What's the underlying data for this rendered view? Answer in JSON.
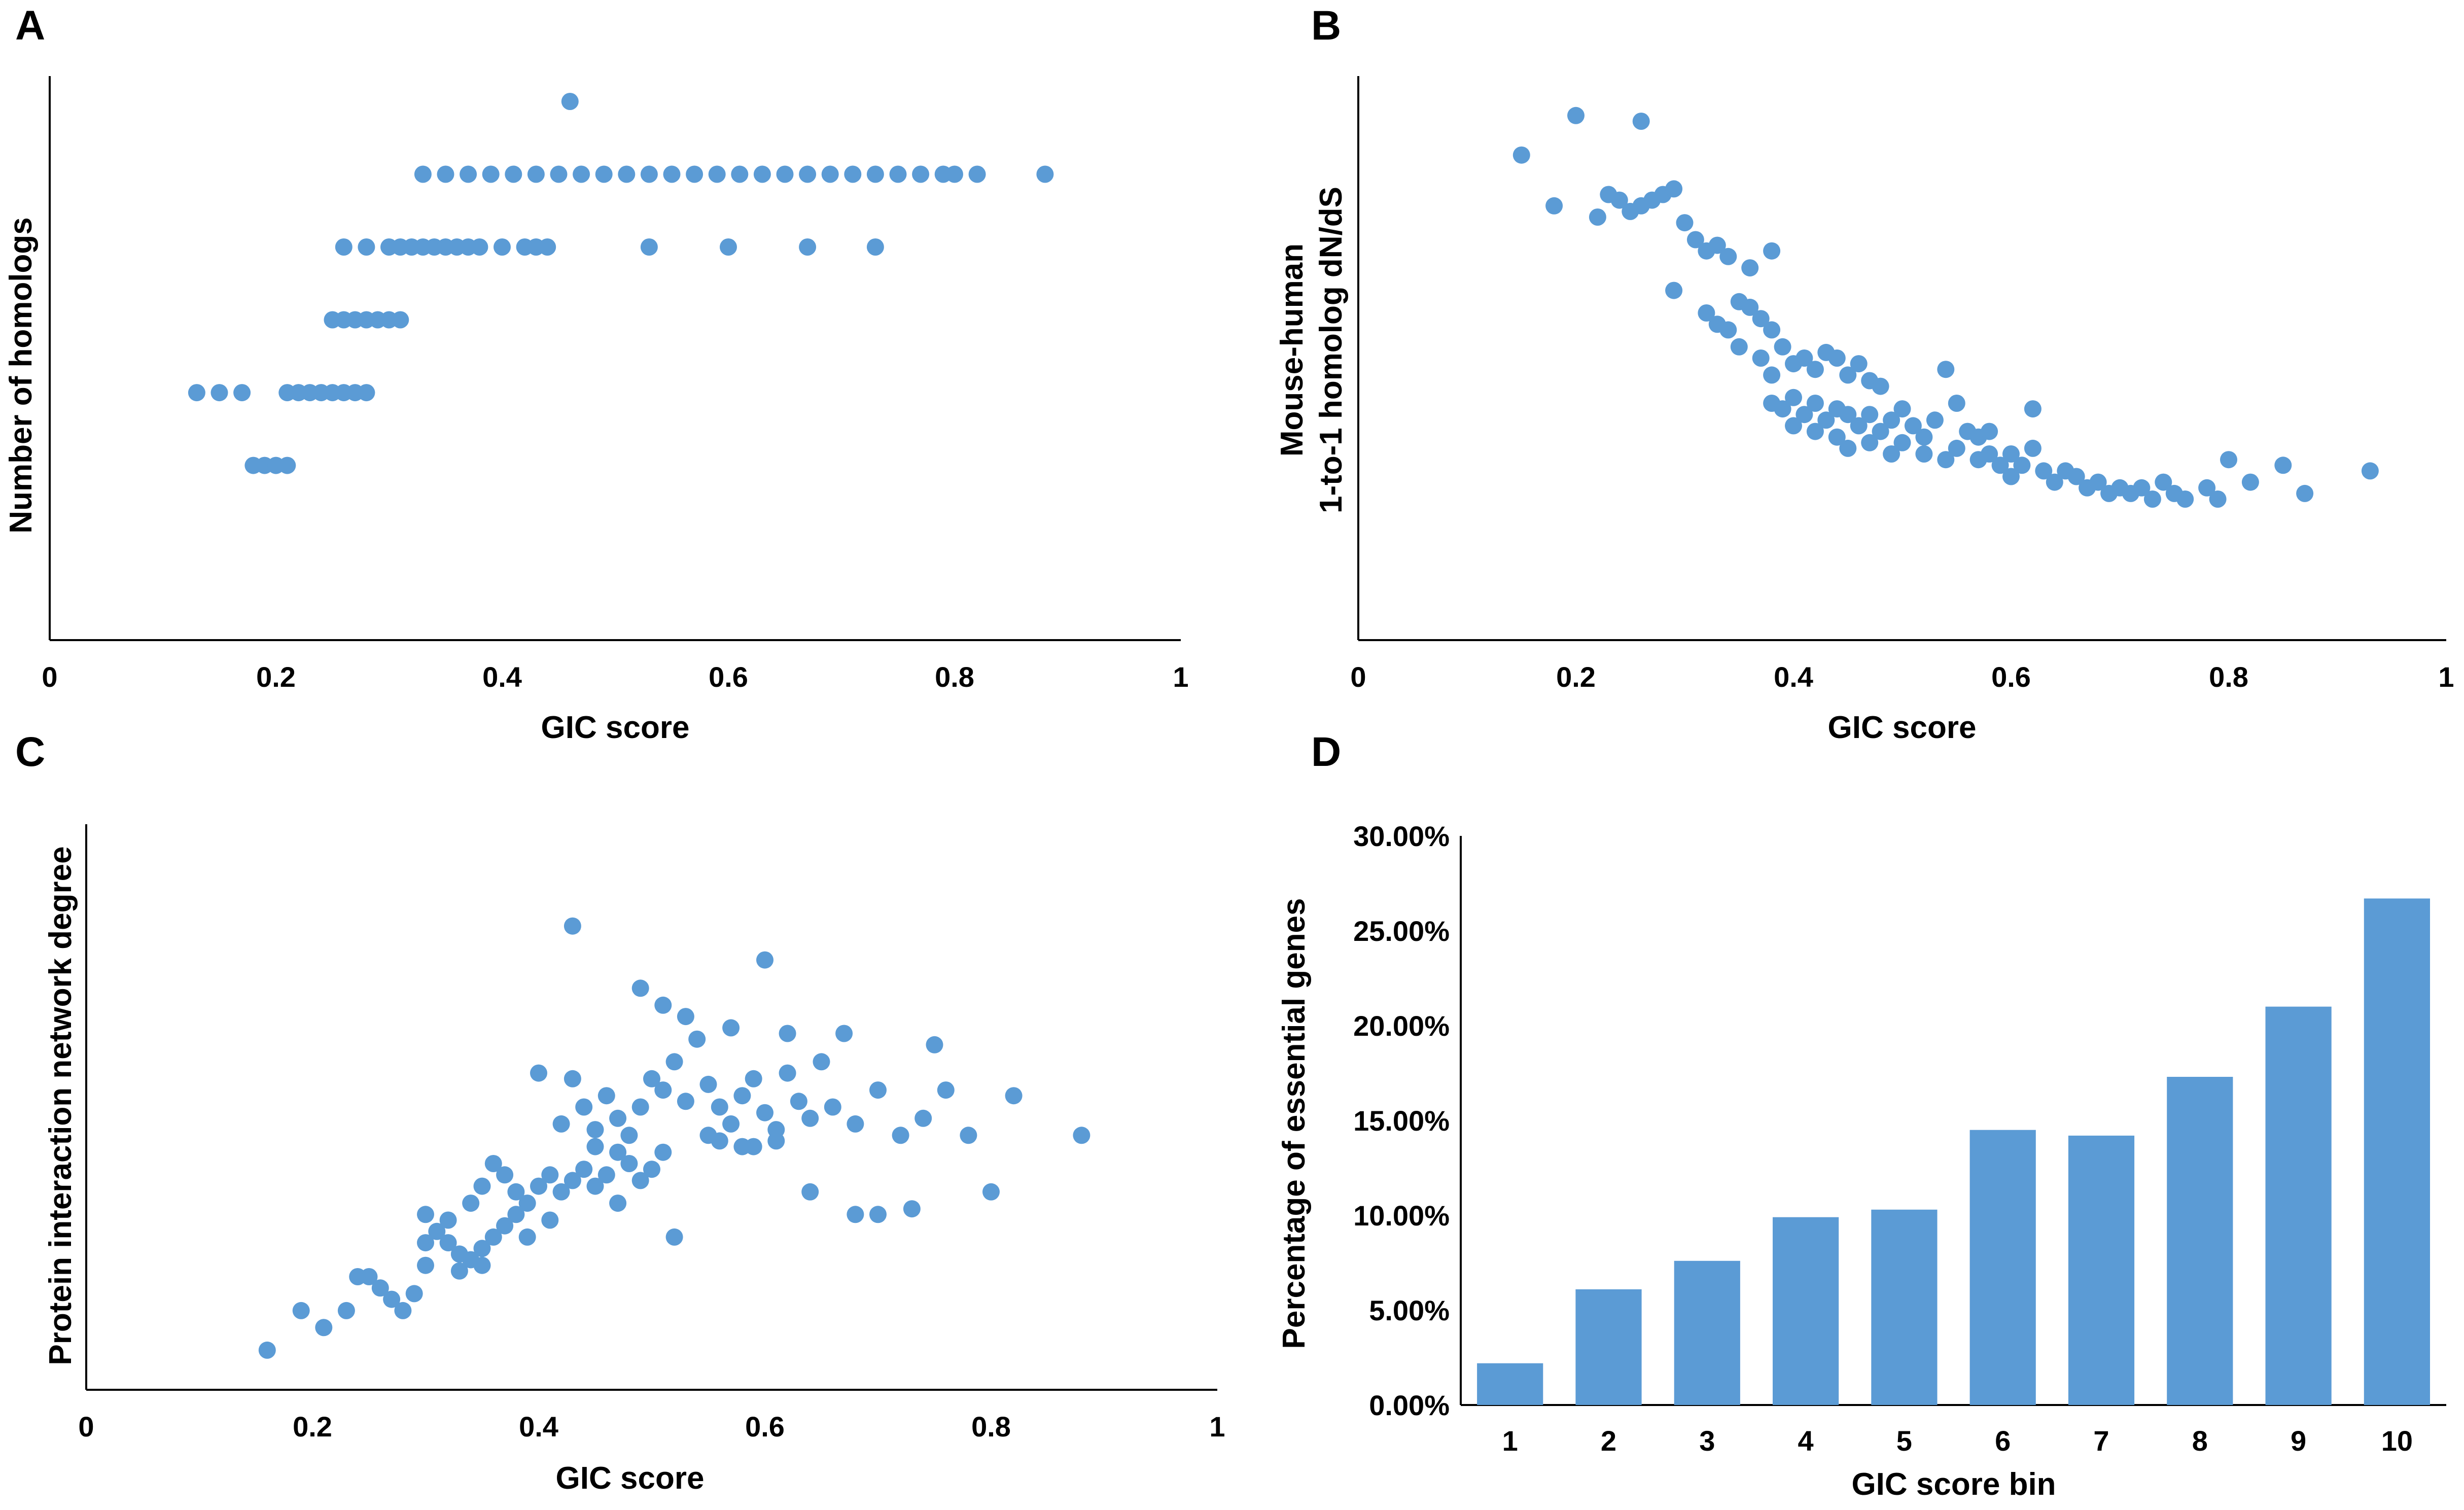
{
  "colors": {
    "marker": "#5b9bd5",
    "axis": "#000000",
    "background": "#ffffff"
  },
  "chart_data": [
    {
      "panel": "A",
      "type": "scatter",
      "title": "",
      "xlabel": "GIC score",
      "ylabel": "Number of homologs",
      "xlim": [
        0,
        1
      ],
      "ylim": [
        0,
        7
      ],
      "xticks": [
        "0",
        "0.2",
        "0.4",
        "0.6",
        "0.8",
        "1"
      ],
      "yticks_shown": false,
      "points": [
        [
          0.13,
          3
        ],
        [
          0.15,
          3
        ],
        [
          0.17,
          3
        ],
        [
          0.18,
          2
        ],
        [
          0.19,
          2
        ],
        [
          0.2,
          2
        ],
        [
          0.21,
          2
        ],
        [
          0.21,
          3
        ],
        [
          0.22,
          3
        ],
        [
          0.23,
          3
        ],
        [
          0.24,
          3
        ],
        [
          0.25,
          3
        ],
        [
          0.26,
          3
        ],
        [
          0.27,
          3
        ],
        [
          0.28,
          3
        ],
        [
          0.25,
          4
        ],
        [
          0.26,
          4
        ],
        [
          0.27,
          4
        ],
        [
          0.28,
          4
        ],
        [
          0.29,
          4
        ],
        [
          0.3,
          4
        ],
        [
          0.31,
          4
        ],
        [
          0.26,
          5
        ],
        [
          0.28,
          5
        ],
        [
          0.3,
          5
        ],
        [
          0.31,
          5
        ],
        [
          0.32,
          5
        ],
        [
          0.33,
          5
        ],
        [
          0.34,
          5
        ],
        [
          0.35,
          5
        ],
        [
          0.36,
          5
        ],
        [
          0.37,
          5
        ],
        [
          0.38,
          5
        ],
        [
          0.4,
          5
        ],
        [
          0.42,
          5
        ],
        [
          0.43,
          5
        ],
        [
          0.44,
          5
        ],
        [
          0.53,
          5
        ],
        [
          0.6,
          5
        ],
        [
          0.67,
          5
        ],
        [
          0.73,
          5
        ],
        [
          0.33,
          6
        ],
        [
          0.35,
          6
        ],
        [
          0.37,
          6
        ],
        [
          0.39,
          6
        ],
        [
          0.41,
          6
        ],
        [
          0.43,
          6
        ],
        [
          0.45,
          6
        ],
        [
          0.47,
          6
        ],
        [
          0.49,
          6
        ],
        [
          0.51,
          6
        ],
        [
          0.53,
          6
        ],
        [
          0.55,
          6
        ],
        [
          0.57,
          6
        ],
        [
          0.59,
          6
        ],
        [
          0.61,
          6
        ],
        [
          0.63,
          6
        ],
        [
          0.65,
          6
        ],
        [
          0.67,
          6
        ],
        [
          0.69,
          6
        ],
        [
          0.71,
          6
        ],
        [
          0.73,
          6
        ],
        [
          0.75,
          6
        ],
        [
          0.77,
          6
        ],
        [
          0.79,
          6
        ],
        [
          0.8,
          6
        ],
        [
          0.82,
          6
        ],
        [
          0.88,
          6
        ],
        [
          0.46,
          7
        ]
      ]
    },
    {
      "panel": "B",
      "type": "scatter",
      "title": "",
      "xlabel": "GIC score",
      "ylabel": [
        "Mouse-human",
        "1-to-1 homolog dN/dS"
      ],
      "xlim": [
        0,
        1
      ],
      "ylim": [
        0,
        1
      ],
      "xticks": [
        "0",
        "0.2",
        "0.4",
        "0.6",
        "0.8",
        "1"
      ],
      "yticks_shown": false,
      "points": [
        [
          0.15,
          0.86
        ],
        [
          0.2,
          0.93
        ],
        [
          0.26,
          0.92
        ],
        [
          0.18,
          0.77
        ],
        [
          0.22,
          0.75
        ],
        [
          0.23,
          0.79
        ],
        [
          0.24,
          0.78
        ],
        [
          0.25,
          0.76
        ],
        [
          0.26,
          0.77
        ],
        [
          0.27,
          0.78
        ],
        [
          0.28,
          0.79
        ],
        [
          0.29,
          0.8
        ],
        [
          0.3,
          0.74
        ],
        [
          0.31,
          0.71
        ],
        [
          0.32,
          0.69
        ],
        [
          0.33,
          0.7
        ],
        [
          0.34,
          0.68
        ],
        [
          0.36,
          0.66
        ],
        [
          0.38,
          0.69
        ],
        [
          0.29,
          0.62
        ],
        [
          0.32,
          0.58
        ],
        [
          0.33,
          0.56
        ],
        [
          0.34,
          0.55
        ],
        [
          0.35,
          0.6
        ],
        [
          0.36,
          0.59
        ],
        [
          0.37,
          0.57
        ],
        [
          0.38,
          0.55
        ],
        [
          0.35,
          0.52
        ],
        [
          0.37,
          0.5
        ],
        [
          0.38,
          0.47
        ],
        [
          0.39,
          0.52
        ],
        [
          0.4,
          0.49
        ],
        [
          0.41,
          0.5
        ],
        [
          0.42,
          0.48
        ],
        [
          0.43,
          0.51
        ],
        [
          0.44,
          0.5
        ],
        [
          0.45,
          0.47
        ],
        [
          0.46,
          0.49
        ],
        [
          0.47,
          0.46
        ],
        [
          0.48,
          0.45
        ],
        [
          0.38,
          0.42
        ],
        [
          0.39,
          0.41
        ],
        [
          0.4,
          0.43
        ],
        [
          0.41,
          0.4
        ],
        [
          0.42,
          0.42
        ],
        [
          0.43,
          0.39
        ],
        [
          0.44,
          0.41
        ],
        [
          0.45,
          0.4
        ],
        [
          0.46,
          0.38
        ],
        [
          0.47,
          0.4
        ],
        [
          0.48,
          0.37
        ],
        [
          0.49,
          0.39
        ],
        [
          0.5,
          0.41
        ],
        [
          0.51,
          0.38
        ],
        [
          0.52,
          0.36
        ],
        [
          0.53,
          0.39
        ],
        [
          0.54,
          0.48
        ],
        [
          0.55,
          0.42
        ],
        [
          0.56,
          0.37
        ],
        [
          0.57,
          0.36
        ],
        [
          0.4,
          0.38
        ],
        [
          0.42,
          0.37
        ],
        [
          0.44,
          0.36
        ],
        [
          0.45,
          0.34
        ],
        [
          0.47,
          0.35
        ],
        [
          0.49,
          0.33
        ],
        [
          0.5,
          0.35
        ],
        [
          0.52,
          0.33
        ],
        [
          0.54,
          0.32
        ],
        [
          0.55,
          0.34
        ],
        [
          0.57,
          0.32
        ],
        [
          0.58,
          0.33
        ],
        [
          0.59,
          0.31
        ],
        [
          0.6,
          0.33
        ],
        [
          0.61,
          0.31
        ],
        [
          0.62,
          0.34
        ],
        [
          0.63,
          0.3
        ],
        [
          0.64,
          0.28
        ],
        [
          0.65,
          0.3
        ],
        [
          0.66,
          0.29
        ],
        [
          0.67,
          0.27
        ],
        [
          0.68,
          0.28
        ],
        [
          0.69,
          0.26
        ],
        [
          0.7,
          0.27
        ],
        [
          0.71,
          0.26
        ],
        [
          0.72,
          0.27
        ],
        [
          0.73,
          0.25
        ],
        [
          0.74,
          0.28
        ],
        [
          0.75,
          0.26
        ],
        [
          0.76,
          0.25
        ],
        [
          0.78,
          0.27
        ],
        [
          0.79,
          0.25
        ],
        [
          0.8,
          0.32
        ],
        [
          0.82,
          0.28
        ],
        [
          0.85,
          0.31
        ],
        [
          0.87,
          0.26
        ],
        [
          0.93,
          0.3
        ],
        [
          0.6,
          0.29
        ],
        [
          0.62,
          0.41
        ],
        [
          0.58,
          0.37
        ]
      ]
    },
    {
      "panel": "C",
      "type": "scatter",
      "title": "",
      "xlabel": "GIC score",
      "ylabel": "Protein interaction network degree",
      "xlim": [
        0,
        1
      ],
      "ylim": [
        0,
        1
      ],
      "xticks": [
        "0",
        "0.2",
        "0.4",
        "0.6",
        "0.8",
        "1"
      ],
      "yticks_shown": false,
      "points": [
        [
          0.16,
          0.07
        ],
        [
          0.19,
          0.14
        ],
        [
          0.21,
          0.11
        ],
        [
          0.23,
          0.14
        ],
        [
          0.24,
          0.2
        ],
        [
          0.25,
          0.2
        ],
        [
          0.26,
          0.18
        ],
        [
          0.27,
          0.16
        ],
        [
          0.28,
          0.14
        ],
        [
          0.29,
          0.17
        ],
        [
          0.3,
          0.22
        ],
        [
          0.3,
          0.31
        ],
        [
          0.31,
          0.28
        ],
        [
          0.32,
          0.26
        ],
        [
          0.33,
          0.24
        ],
        [
          0.34,
          0.23
        ],
        [
          0.35,
          0.25
        ],
        [
          0.36,
          0.27
        ],
        [
          0.37,
          0.29
        ],
        [
          0.38,
          0.31
        ],
        [
          0.3,
          0.26
        ],
        [
          0.32,
          0.3
        ],
        [
          0.34,
          0.33
        ],
        [
          0.35,
          0.36
        ],
        [
          0.36,
          0.4
        ],
        [
          0.37,
          0.38
        ],
        [
          0.38,
          0.35
        ],
        [
          0.39,
          0.33
        ],
        [
          0.4,
          0.36
        ],
        [
          0.41,
          0.38
        ],
        [
          0.42,
          0.35
        ],
        [
          0.43,
          0.37
        ],
        [
          0.44,
          0.39
        ],
        [
          0.45,
          0.36
        ],
        [
          0.46,
          0.38
        ],
        [
          0.47,
          0.42
        ],
        [
          0.48,
          0.4
        ],
        [
          0.49,
          0.37
        ],
        [
          0.5,
          0.39
        ],
        [
          0.51,
          0.42
        ],
        [
          0.4,
          0.56
        ],
        [
          0.42,
          0.47
        ],
        [
          0.43,
          0.55
        ],
        [
          0.44,
          0.5
        ],
        [
          0.45,
          0.46
        ],
        [
          0.46,
          0.52
        ],
        [
          0.47,
          0.48
        ],
        [
          0.48,
          0.45
        ],
        [
          0.49,
          0.5
        ],
        [
          0.5,
          0.55
        ],
        [
          0.51,
          0.53
        ],
        [
          0.52,
          0.58
        ],
        [
          0.53,
          0.51
        ],
        [
          0.54,
          0.62
        ],
        [
          0.55,
          0.54
        ],
        [
          0.56,
          0.5
        ],
        [
          0.57,
          0.47
        ],
        [
          0.58,
          0.52
        ],
        [
          0.59,
          0.55
        ],
        [
          0.6,
          0.49
        ],
        [
          0.61,
          0.46
        ],
        [
          0.62,
          0.56
        ],
        [
          0.63,
          0.51
        ],
        [
          0.64,
          0.48
        ],
        [
          0.65,
          0.58
        ],
        [
          0.66,
          0.5
        ],
        [
          0.67,
          0.63
        ],
        [
          0.68,
          0.47
        ],
        [
          0.7,
          0.53
        ],
        [
          0.72,
          0.45
        ],
        [
          0.73,
          0.32
        ],
        [
          0.74,
          0.48
        ],
        [
          0.75,
          0.61
        ],
        [
          0.76,
          0.53
        ],
        [
          0.78,
          0.45
        ],
        [
          0.8,
          0.35
        ],
        [
          0.82,
          0.52
        ],
        [
          0.88,
          0.45
        ],
        [
          0.43,
          0.82
        ],
        [
          0.6,
          0.76
        ],
        [
          0.49,
          0.71
        ],
        [
          0.51,
          0.68
        ],
        [
          0.53,
          0.66
        ],
        [
          0.59,
          0.43
        ],
        [
          0.64,
          0.35
        ],
        [
          0.68,
          0.31
        ],
        [
          0.7,
          0.31
        ],
        [
          0.52,
          0.27
        ],
        [
          0.47,
          0.33
        ],
        [
          0.39,
          0.27
        ],
        [
          0.35,
          0.22
        ],
        [
          0.33,
          0.21
        ],
        [
          0.41,
          0.3
        ],
        [
          0.56,
          0.44
        ],
        [
          0.57,
          0.64
        ],
        [
          0.58,
          0.43
        ],
        [
          0.61,
          0.44
        ],
        [
          0.62,
          0.63
        ],
        [
          0.55,
          0.45
        ],
        [
          0.45,
          0.43
        ]
      ]
    },
    {
      "panel": "D",
      "type": "bar",
      "title": "",
      "xlabel": "GIC score bin",
      "ylabel": "Percentage of essential genes",
      "categories": [
        "1",
        "2",
        "3",
        "4",
        "5",
        "6",
        "7",
        "8",
        "9",
        "10"
      ],
      "values": [
        0.022,
        0.061,
        0.076,
        0.099,
        0.103,
        0.145,
        0.142,
        0.173,
        0.21,
        0.267
      ],
      "ylim": [
        0,
        0.3
      ],
      "yticks": [
        "0.00%",
        "5.00%",
        "10.00%",
        "15.00%",
        "20.00%",
        "25.00%",
        "30.00%"
      ]
    }
  ]
}
